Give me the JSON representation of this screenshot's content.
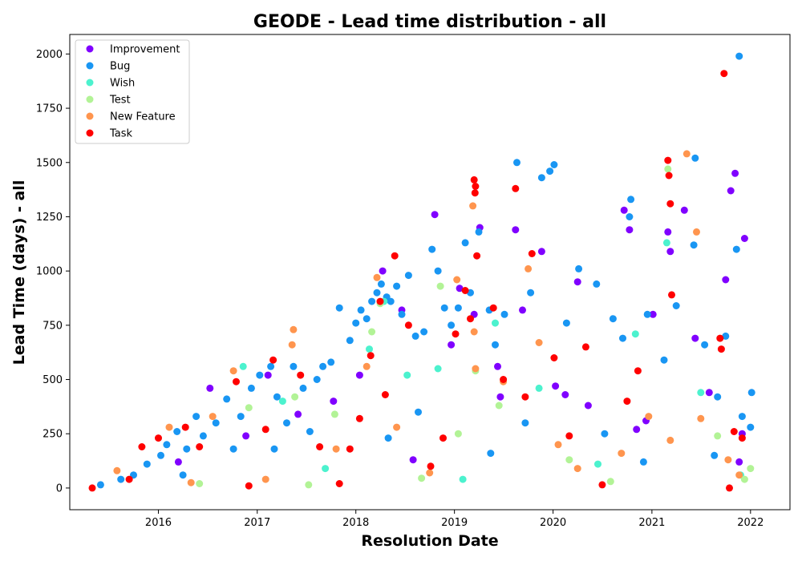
{
  "chart_data": {
    "type": "scatter",
    "title": "GEODE - Lead time distribution - all",
    "xlabel": "Resolution Date",
    "ylabel": "Lead Time (days) - all",
    "xlim": [
      "2015-02-07",
      "2022-05-27"
    ],
    "ylim": [
      -100,
      2090
    ],
    "x_ticks": [
      "2016",
      "2017",
      "2018",
      "2019",
      "2020",
      "2021",
      "2022"
    ],
    "y_ticks": [
      0,
      250,
      500,
      750,
      1000,
      1250,
      1500,
      1750,
      2000
    ],
    "grid": false,
    "legend_position": "top-left",
    "series": [
      {
        "name": "Improvement",
        "color": "#8000ff",
        "points": [
          [
            "2016-03-15",
            120
          ],
          [
            "2016-07-10",
            460
          ],
          [
            "2016-11-20",
            240
          ],
          [
            "2017-02-10",
            520
          ],
          [
            "2017-06-01",
            340
          ],
          [
            "2017-10-10",
            400
          ],
          [
            "2018-01-15",
            520
          ],
          [
            "2018-04-10",
            1000
          ],
          [
            "2018-06-20",
            820
          ],
          [
            "2018-10-20",
            1260
          ],
          [
            "2019-01-20",
            920
          ],
          [
            "2019-03-15",
            800
          ],
          [
            "2019-04-05",
            1200
          ],
          [
            "2019-06-10",
            560
          ],
          [
            "2019-08-15",
            1190
          ],
          [
            "2019-09-10",
            820
          ],
          [
            "2019-11-20",
            1090
          ],
          [
            "2020-01-10",
            470
          ],
          [
            "2020-02-15",
            430
          ],
          [
            "2020-04-01",
            950
          ],
          [
            "2020-05-10",
            380
          ],
          [
            "2020-09-20",
            1280
          ],
          [
            "2020-10-10",
            1190
          ],
          [
            "2020-11-05",
            270
          ],
          [
            "2021-01-05",
            800
          ],
          [
            "2021-03-01",
            1180
          ],
          [
            "2021-03-10",
            1090
          ],
          [
            "2021-05-01",
            1280
          ],
          [
            "2021-06-10",
            690
          ],
          [
            "2021-08-01",
            440
          ],
          [
            "2021-10-20",
            1370
          ],
          [
            "2021-11-05",
            1450
          ],
          [
            "2021-12-10",
            1150
          ],
          [
            "2021-12-01",
            250
          ],
          [
            "2021-11-20",
            120
          ],
          [
            "2021-10-01",
            960
          ],
          [
            "2020-12-10",
            310
          ],
          [
            "2019-06-20",
            420
          ],
          [
            "2018-12-20",
            660
          ],
          [
            "2018-08-01",
            130
          ]
        ]
      },
      {
        "name": "Bug",
        "color": "#1996f3",
        "points": [
          [
            "2015-06-01",
            15
          ],
          [
            "2015-08-15",
            40
          ],
          [
            "2015-10-01",
            60
          ],
          [
            "2015-11-20",
            110
          ],
          [
            "2016-01-10",
            150
          ],
          [
            "2016-02-01",
            200
          ],
          [
            "2016-03-10",
            260
          ],
          [
            "2016-04-15",
            180
          ],
          [
            "2016-05-20",
            330
          ],
          [
            "2016-06-15",
            240
          ],
          [
            "2016-08-01",
            300
          ],
          [
            "2016-09-10",
            410
          ],
          [
            "2016-10-05",
            180
          ],
          [
            "2016-11-01",
            330
          ],
          [
            "2016-12-10",
            460
          ],
          [
            "2017-01-10",
            520
          ],
          [
            "2017-02-20",
            560
          ],
          [
            "2017-03-15",
            420
          ],
          [
            "2017-04-20",
            300
          ],
          [
            "2017-05-15",
            560
          ],
          [
            "2017-06-20",
            460
          ],
          [
            "2017-07-15",
            260
          ],
          [
            "2017-08-10",
            500
          ],
          [
            "2017-09-01",
            560
          ],
          [
            "2017-10-01",
            580
          ],
          [
            "2017-11-01",
            830
          ],
          [
            "2017-12-10",
            680
          ],
          [
            "2018-01-01",
            760
          ],
          [
            "2018-01-20",
            820
          ],
          [
            "2018-02-10",
            780
          ],
          [
            "2018-03-01",
            860
          ],
          [
            "2018-03-20",
            900
          ],
          [
            "2018-04-05",
            940
          ],
          [
            "2018-04-25",
            880
          ],
          [
            "2018-05-10",
            860
          ],
          [
            "2018-06-01",
            930
          ],
          [
            "2018-06-20",
            800
          ],
          [
            "2018-07-15",
            980
          ],
          [
            "2018-08-10",
            700
          ],
          [
            "2018-09-10",
            720
          ],
          [
            "2018-10-10",
            1100
          ],
          [
            "2018-11-01",
            1000
          ],
          [
            "2018-11-25",
            830
          ],
          [
            "2018-12-20",
            750
          ],
          [
            "2019-01-15",
            830
          ],
          [
            "2019-02-10",
            1130
          ],
          [
            "2019-03-01",
            900
          ],
          [
            "2019-04-01",
            1180
          ],
          [
            "2019-05-10",
            820
          ],
          [
            "2019-06-01",
            660
          ],
          [
            "2019-07-05",
            800
          ],
          [
            "2019-08-20",
            1500
          ],
          [
            "2019-10-10",
            900
          ],
          [
            "2019-11-20",
            1430
          ],
          [
            "2019-12-20",
            1460
          ],
          [
            "2020-01-05",
            1490
          ],
          [
            "2020-02-20",
            760
          ],
          [
            "2020-04-05",
            1010
          ],
          [
            "2020-06-10",
            940
          ],
          [
            "2020-08-10",
            780
          ],
          [
            "2020-09-15",
            690
          ],
          [
            "2020-10-15",
            1330
          ],
          [
            "2020-10-10",
            1250
          ],
          [
            "2020-12-15",
            800
          ],
          [
            "2021-02-15",
            590
          ],
          [
            "2021-04-01",
            840
          ],
          [
            "2021-06-10",
            1520
          ],
          [
            "2021-06-05",
            1120
          ],
          [
            "2021-07-15",
            660
          ],
          [
            "2021-09-01",
            420
          ],
          [
            "2021-10-01",
            700
          ],
          [
            "2021-11-20",
            1990
          ],
          [
            "2021-11-10",
            1100
          ],
          [
            "2021-12-01",
            330
          ],
          [
            "2022-01-05",
            440
          ],
          [
            "2022-01-01",
            280
          ],
          [
            "2020-07-10",
            250
          ],
          [
            "2019-09-20",
            300
          ],
          [
            "2018-08-20",
            350
          ],
          [
            "2017-03-05",
            180
          ],
          [
            "2016-04-01",
            60
          ],
          [
            "2021-08-20",
            150
          ],
          [
            "2020-12-01",
            120
          ],
          [
            "2019-05-15",
            160
          ],
          [
            "2018-05-01",
            230
          ]
        ]
      },
      {
        "name": "Wish",
        "color": "#4cf2ce",
        "points": [
          [
            "2016-11-10",
            560
          ],
          [
            "2017-04-05",
            400
          ],
          [
            "2018-02-20",
            640
          ],
          [
            "2018-04-15",
            860
          ],
          [
            "2018-07-10",
            520
          ],
          [
            "2018-11-01",
            550
          ],
          [
            "2019-06-01",
            760
          ],
          [
            "2019-11-10",
            460
          ],
          [
            "2020-06-15",
            110
          ],
          [
            "2020-11-01",
            710
          ],
          [
            "2021-02-25",
            1130
          ],
          [
            "2021-07-01",
            440
          ],
          [
            "2017-09-10",
            90
          ],
          [
            "2019-02-01",
            40
          ],
          [
            "2021-11-25",
            60
          ]
        ]
      },
      {
        "name": "Test",
        "color": "#b2f396",
        "points": [
          [
            "2016-06-01",
            20
          ],
          [
            "2016-12-01",
            370
          ],
          [
            "2017-05-20",
            420
          ],
          [
            "2017-10-15",
            340
          ],
          [
            "2018-03-01",
            720
          ],
          [
            "2018-04-01",
            850
          ],
          [
            "2018-11-10",
            930
          ],
          [
            "2019-01-15",
            250
          ],
          [
            "2019-03-20",
            540
          ],
          [
            "2019-06-15",
            380
          ],
          [
            "2020-03-01",
            130
          ],
          [
            "2021-03-01",
            1470
          ],
          [
            "2021-09-01",
            240
          ],
          [
            "2022-01-01",
            90
          ],
          [
            "2021-12-10",
            40
          ],
          [
            "2020-08-01",
            30
          ],
          [
            "2017-07-10",
            15
          ],
          [
            "2018-09-01",
            45
          ]
        ]
      },
      {
        "name": "New Feature",
        "color": "#ff954e",
        "points": [
          [
            "2015-08-01",
            80
          ],
          [
            "2016-02-10",
            280
          ],
          [
            "2016-07-20",
            330
          ],
          [
            "2016-10-05",
            540
          ],
          [
            "2017-05-15",
            730
          ],
          [
            "2017-05-10",
            660
          ],
          [
            "2017-10-20",
            180
          ],
          [
            "2018-02-10",
            560
          ],
          [
            "2018-03-20",
            970
          ],
          [
            "2018-06-01",
            280
          ],
          [
            "2019-01-10",
            960
          ],
          [
            "2019-03-10",
            1300
          ],
          [
            "2019-03-15",
            720
          ],
          [
            "2019-03-20",
            550
          ],
          [
            "2019-07-01",
            490
          ],
          [
            "2019-10-01",
            1010
          ],
          [
            "2019-11-10",
            670
          ],
          [
            "2020-01-20",
            200
          ],
          [
            "2020-09-10",
            160
          ],
          [
            "2020-12-20",
            330
          ],
          [
            "2021-03-10",
            220
          ],
          [
            "2021-05-10",
            1540
          ],
          [
            "2021-06-15",
            1180
          ],
          [
            "2021-07-01",
            320
          ],
          [
            "2021-10-10",
            130
          ],
          [
            "2021-11-20",
            60
          ],
          [
            "2020-04-01",
            90
          ],
          [
            "2018-10-01",
            70
          ],
          [
            "2017-02-01",
            40
          ],
          [
            "2016-05-01",
            25
          ]
        ]
      },
      {
        "name": "Task",
        "color": "#ff0000",
        "points": [
          [
            "2015-05-01",
            0
          ],
          [
            "2015-09-15",
            40
          ],
          [
            "2015-11-01",
            190
          ],
          [
            "2016-01-01",
            230
          ],
          [
            "2016-04-10",
            280
          ],
          [
            "2016-06-01",
            190
          ],
          [
            "2016-10-15",
            490
          ],
          [
            "2017-02-01",
            270
          ],
          [
            "2017-03-01",
            590
          ],
          [
            "2017-06-10",
            520
          ],
          [
            "2017-08-20",
            190
          ],
          [
            "2017-12-10",
            180
          ],
          [
            "2018-01-15",
            320
          ],
          [
            "2018-02-25",
            610
          ],
          [
            "2018-04-01",
            860
          ],
          [
            "2018-04-20",
            430
          ],
          [
            "2018-05-25",
            1070
          ],
          [
            "2018-07-15",
            750
          ],
          [
            "2018-10-05",
            100
          ],
          [
            "2019-01-05",
            710
          ],
          [
            "2019-02-10",
            910
          ],
          [
            "2019-03-01",
            780
          ],
          [
            "2019-03-15",
            1420
          ],
          [
            "2019-03-20",
            1390
          ],
          [
            "2019-03-18",
            1360
          ],
          [
            "2019-03-25",
            1070
          ],
          [
            "2019-05-25",
            830
          ],
          [
            "2019-07-01",
            500
          ],
          [
            "2019-08-15",
            1380
          ],
          [
            "2019-09-20",
            420
          ],
          [
            "2019-10-15",
            1080
          ],
          [
            "2020-01-05",
            600
          ],
          [
            "2020-03-01",
            240
          ],
          [
            "2020-05-01",
            650
          ],
          [
            "2020-11-10",
            540
          ],
          [
            "2021-03-01",
            1510
          ],
          [
            "2021-03-05",
            1440
          ],
          [
            "2021-03-10",
            1310
          ],
          [
            "2021-03-15",
            890
          ],
          [
            "2021-09-10",
            690
          ],
          [
            "2021-09-15",
            640
          ],
          [
            "2021-09-25",
            1910
          ],
          [
            "2021-11-01",
            260
          ],
          [
            "2021-12-01",
            230
          ],
          [
            "2021-10-15",
            0
          ],
          [
            "2020-10-01",
            400
          ],
          [
            "2018-11-20",
            230
          ],
          [
            "2017-11-01",
            20
          ],
          [
            "2016-12-01",
            10
          ],
          [
            "2020-07-01",
            15
          ]
        ]
      }
    ]
  }
}
